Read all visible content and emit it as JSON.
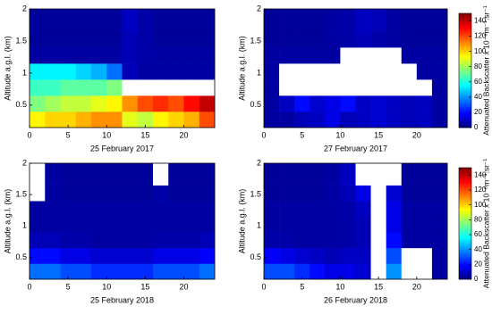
{
  "chart_data": [
    {
      "type": "heatmap",
      "xlabel": "25 February 2017",
      "ylabel": "Altitude a.g.l. (km)",
      "xlim": [
        0,
        24
      ],
      "xticks": [
        0,
        5,
        10,
        15,
        20
      ],
      "ylim": [
        0.15,
        2.0
      ],
      "yticks": [
        0.5,
        1.0,
        1.5,
        2.0
      ],
      "xbins": [
        0,
        2,
        4,
        6,
        8,
        10,
        12,
        14,
        16,
        18,
        20,
        22,
        24
      ],
      "ybins": [
        0.15,
        0.4,
        0.65,
        0.9,
        1.15,
        1.4,
        1.65,
        2.0
      ],
      "values": [
        [
          95,
          100,
          100,
          105,
          110,
          110,
          90,
          85,
          95,
          100,
          105,
          120
        ],
        [
          75,
          80,
          85,
          85,
          90,
          95,
          110,
          120,
          125,
          120,
          130,
          140
        ],
        [
          65,
          65,
          70,
          70,
          70,
          75,
          null,
          null,
          null,
          null,
          null,
          null
        ],
        [
          55,
          55,
          55,
          50,
          45,
          35,
          8,
          5,
          5,
          5,
          5,
          5
        ],
        [
          5,
          5,
          5,
          5,
          5,
          5,
          8,
          6,
          5,
          5,
          5,
          5
        ],
        [
          4,
          4,
          4,
          4,
          4,
          4,
          8,
          6,
          4,
          4,
          4,
          4
        ],
        [
          4,
          4,
          4,
          4,
          4,
          4,
          10,
          6,
          4,
          4,
          4,
          4
        ]
      ]
    },
    {
      "type": "heatmap",
      "xlabel": "27 February 2017",
      "ylabel": "Altitude a.g.l. (km)",
      "xlim": [
        0,
        24
      ],
      "xticks": [
        0,
        5,
        10,
        15,
        20
      ],
      "ylim": [
        0.15,
        2.0
      ],
      "yticks": [
        0.5,
        1.0,
        1.5,
        2.0
      ],
      "xbins": [
        0,
        2,
        4,
        6,
        8,
        10,
        12,
        14,
        16,
        18,
        20,
        22,
        24
      ],
      "ybins": [
        0.15,
        0.4,
        0.65,
        0.9,
        1.15,
        1.4,
        1.65,
        2.0
      ],
      "values": [
        [
          5,
          5,
          8,
          10,
          15,
          8,
          10,
          12,
          10,
          8,
          10,
          5
        ],
        [
          5,
          10,
          20,
          12,
          15,
          20,
          10,
          12,
          10,
          8,
          10,
          5
        ],
        [
          5,
          null,
          null,
          null,
          null,
          null,
          null,
          null,
          null,
          null,
          null,
          5
        ],
        [
          5,
          null,
          null,
          null,
          null,
          null,
          null,
          null,
          null,
          null,
          5,
          5
        ],
        [
          5,
          5,
          5,
          5,
          5,
          null,
          null,
          null,
          null,
          5,
          5,
          5
        ],
        [
          4,
          4,
          4,
          4,
          5,
          6,
          8,
          6,
          5,
          4,
          4,
          4
        ],
        [
          4,
          4,
          4,
          4,
          5,
          6,
          10,
          8,
          5,
          4,
          4,
          4
        ]
      ],
      "colorbar": {
        "label": "Attenuated Backscatter x 10⁻⁶m⁻¹.sr⁻¹",
        "clim": [
          0,
          150
        ],
        "ticks": [
          0,
          20,
          40,
          60,
          80,
          100,
          120,
          140
        ]
      }
    },
    {
      "type": "heatmap",
      "xlabel": "25 February 2018",
      "ylabel": "Altitude a.g.l. (km)",
      "xlim": [
        0,
        24
      ],
      "xticks": [
        0,
        5,
        10,
        15,
        20
      ],
      "ylim": [
        0.15,
        2.0
      ],
      "yticks": [
        0.5,
        1.0,
        1.5,
        2.0
      ],
      "xbins": [
        0,
        2,
        4,
        6,
        8,
        10,
        12,
        14,
        16,
        18,
        20,
        22,
        24
      ],
      "ybins": [
        0.15,
        0.4,
        0.65,
        0.9,
        1.15,
        1.4,
        1.65,
        2.0
      ],
      "values": [
        [
          35,
          35,
          30,
          30,
          25,
          25,
          25,
          25,
          30,
          30,
          30,
          35
        ],
        [
          20,
          20,
          15,
          15,
          12,
          12,
          12,
          12,
          15,
          15,
          15,
          18
        ],
        [
          8,
          8,
          6,
          6,
          5,
          5,
          5,
          5,
          6,
          6,
          6,
          8
        ],
        [
          5,
          5,
          5,
          5,
          5,
          5,
          5,
          5,
          5,
          5,
          5,
          5
        ],
        [
          5,
          5,
          5,
          5,
          5,
          5,
          5,
          5,
          5,
          5,
          5,
          5
        ],
        [
          null,
          5,
          4,
          4,
          4,
          4,
          4,
          4,
          6,
          4,
          4,
          4
        ],
        [
          null,
          5,
          4,
          4,
          4,
          4,
          4,
          4,
          null,
          4,
          4,
          4
        ]
      ]
    },
    {
      "type": "heatmap",
      "xlabel": "26 February 2018",
      "ylabel": "Altitude a.g.l. (km)",
      "xlim": [
        0,
        24
      ],
      "xticks": [
        0,
        5,
        10,
        15,
        20
      ],
      "ylim": [
        0.15,
        2.0
      ],
      "yticks": [
        0.5,
        1.0,
        1.5,
        2.0
      ],
      "xbins": [
        0,
        2,
        4,
        6,
        8,
        10,
        12,
        14,
        16,
        18,
        20,
        22,
        24
      ],
      "ybins": [
        0.15,
        0.4,
        0.65,
        0.9,
        1.15,
        1.4,
        1.65,
        2.0
      ],
      "values": [
        [
          30,
          30,
          25,
          20,
          15,
          15,
          12,
          null,
          40,
          null,
          null,
          5
        ],
        [
          18,
          15,
          12,
          10,
          8,
          10,
          10,
          null,
          30,
          null,
          null,
          5
        ],
        [
          6,
          6,
          5,
          5,
          5,
          6,
          8,
          null,
          20,
          5,
          5,
          5
        ],
        [
          5,
          5,
          5,
          5,
          5,
          6,
          8,
          null,
          15,
          5,
          5,
          5
        ],
        [
          5,
          5,
          5,
          5,
          5,
          6,
          10,
          null,
          15,
          5,
          5,
          5
        ],
        [
          4,
          4,
          4,
          4,
          5,
          8,
          15,
          null,
          12,
          4,
          4,
          4
        ],
        [
          4,
          4,
          4,
          4,
          5,
          10,
          null,
          null,
          null,
          4,
          4,
          4
        ]
      ],
      "colorbar": {
        "label": "Attenuated Backscatter x 10⁻⁶m⁻¹.sr⁻¹",
        "clim": [
          0,
          150
        ],
        "ticks": [
          0,
          20,
          40,
          60,
          80,
          100,
          120,
          140
        ]
      }
    }
  ]
}
